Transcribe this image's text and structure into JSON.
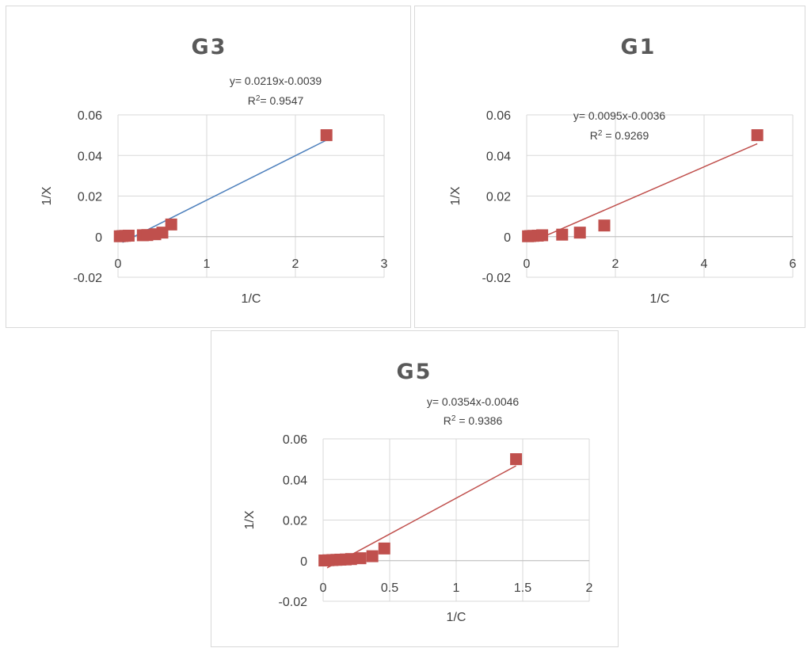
{
  "chart_data": [
    {
      "type": "scatter",
      "title": "G3",
      "xlabel": "1/C",
      "ylabel": "1/X",
      "xlim": [
        0,
        3
      ],
      "ylim": [
        -0.02,
        0.06
      ],
      "xticks": [
        "0",
        "1",
        "2",
        "3"
      ],
      "yticks": [
        "0.06",
        "0.04",
        "0.02",
        "0",
        "-0.02"
      ],
      "grid": true,
      "series": [
        {
          "color": "#c0504d",
          "marker": "square",
          "x": [
            0.02,
            0.05,
            0.08,
            0.12,
            0.28,
            0.33,
            0.42,
            0.5,
            0.6,
            2.35
          ],
          "y": [
            0.0002,
            0.0003,
            0.0004,
            0.0005,
            0.0007,
            0.0008,
            0.0012,
            0.002,
            0.006,
            0.05
          ]
        }
      ],
      "trendline": {
        "slope": 0.0219,
        "intercept": -0.0039,
        "x": [
          0.05,
          2.35
        ],
        "color": "#4f81bd"
      },
      "equation_label": "y= 0.0219x-0.0039",
      "r2_label": {
        "prefix": "R",
        "sup": "2",
        "suffix": "= 0.9547"
      }
    },
    {
      "type": "scatter",
      "title": "G1",
      "xlabel": "1/C",
      "ylabel": "1/X",
      "xlim": [
        0,
        6
      ],
      "ylim": [
        -0.02,
        0.06
      ],
      "xticks": [
        "0",
        "2",
        "4",
        "6"
      ],
      "yticks": [
        "0.06",
        "0.04",
        "0.02",
        "0",
        "-0.02"
      ],
      "grid": true,
      "series": [
        {
          "color": "#c0504d",
          "marker": "square",
          "x": [
            0.03,
            0.08,
            0.15,
            0.25,
            0.35,
            0.8,
            1.2,
            1.75,
            5.2
          ],
          "y": [
            0.0002,
            0.0003,
            0.0004,
            0.0005,
            0.0007,
            0.001,
            0.002,
            0.0055,
            0.05
          ]
        }
      ],
      "trendline": {
        "slope": 0.0095,
        "intercept": -0.0036,
        "x": [
          0.25,
          5.2
        ],
        "color": "#c0504d"
      },
      "equation_label": "y= 0.0095x-0.0036",
      "r2_label": {
        "prefix": "R",
        "sup": "2",
        "suffix": " = 0.9269"
      }
    },
    {
      "type": "scatter",
      "title": "G5",
      "xlabel": "1/C",
      "ylabel": "1/X",
      "xlim": [
        0,
        2
      ],
      "ylim": [
        -0.02,
        0.06
      ],
      "xticks": [
        "0",
        "0.5",
        "1",
        "1.5",
        "2"
      ],
      "yticks": [
        "0.06",
        "0.04",
        "0.02",
        "0",
        "-0.02"
      ],
      "grid": true,
      "series": [
        {
          "color": "#c0504d",
          "marker": "square",
          "x": [
            0.01,
            0.04,
            0.07,
            0.1,
            0.13,
            0.17,
            0.21,
            0.28,
            0.37,
            0.46,
            1.45
          ],
          "y": [
            0.0001,
            0.0002,
            0.0003,
            0.0004,
            0.0005,
            0.0006,
            0.0008,
            0.0012,
            0.0022,
            0.006,
            0.05
          ]
        }
      ],
      "trendline": {
        "slope": 0.0354,
        "intercept": -0.0046,
        "x": [
          0.03,
          1.45
        ],
        "color": "#c0504d"
      },
      "equation_label": "y= 0.0354x-0.0046",
      "r2_label": {
        "prefix": "R",
        "sup": "2",
        "suffix": " = 0.9386"
      }
    }
  ]
}
